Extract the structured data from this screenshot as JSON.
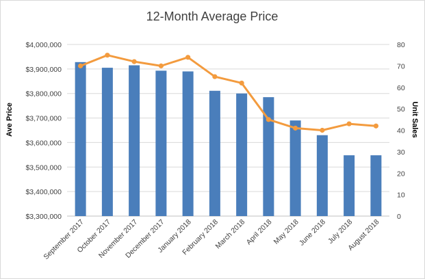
{
  "chart_data": {
    "type": "bar",
    "title": "12-Month Average Price",
    "categories": [
      "September 2017",
      "October 2017",
      "November 2017",
      "December 2017",
      "January 2018",
      "February 2018",
      "March 2018",
      "April 2018",
      "May 2018",
      "June 2018",
      "July 2018",
      "August 2018"
    ],
    "series": [
      {
        "name": "",
        "type": "bar",
        "axis": "left",
        "color": "#4a7ebb",
        "values": [
          3928000,
          3905000,
          3915000,
          3893000,
          3890000,
          3811000,
          3800000,
          3785000,
          3690000,
          3630000,
          3548000,
          3548000
        ]
      },
      {
        "name": "",
        "type": "line",
        "axis": "right",
        "color": "#f39b3e",
        "values": [
          70,
          75,
          72,
          70,
          74,
          65,
          62,
          45,
          41,
          40,
          43,
          42
        ]
      }
    ],
    "ylabel": "Ave Price",
    "y2label": "Unit Sales",
    "ylim": [
      3300000,
      4000000
    ],
    "y2lim": [
      0,
      80
    ],
    "yticks": [
      "$3,300,000",
      "$3,400,000",
      "$3,500,000",
      "$3,600,000",
      "$3,700,000",
      "$3,800,000",
      "$3,900,000",
      "$4,000,000"
    ],
    "y2ticks": [
      "0",
      "10",
      "20",
      "30",
      "40",
      "50",
      "60",
      "70",
      "80"
    ],
    "grid": true,
    "legend": "none"
  }
}
